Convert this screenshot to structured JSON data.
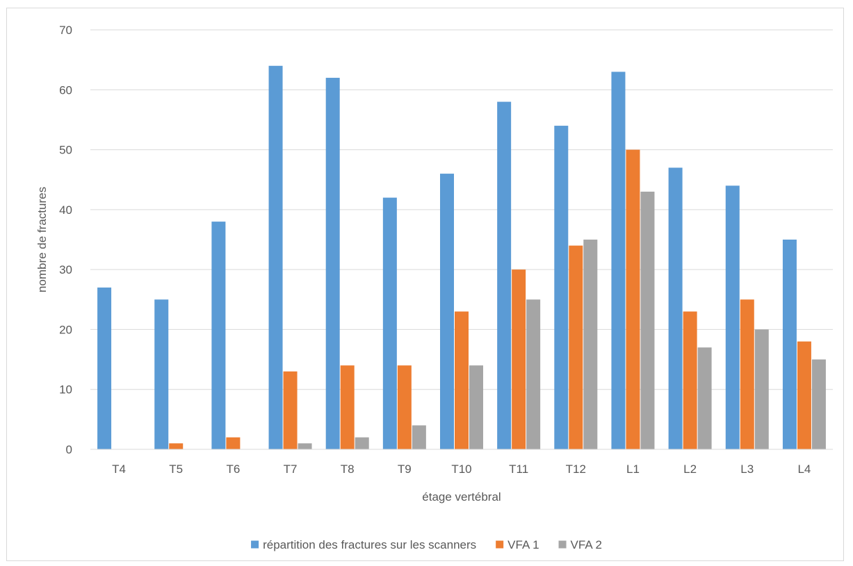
{
  "chart_data": {
    "type": "bar",
    "categories": [
      "T4",
      "T5",
      "T6",
      "T7",
      "T8",
      "T9",
      "T10",
      "T11",
      "T12",
      "L1",
      "L2",
      "L3",
      "L4"
    ],
    "series": [
      {
        "name": "répartition des fractures sur les scanners",
        "color": "#5b9bd5",
        "values": [
          27,
          25,
          38,
          64,
          62,
          42,
          46,
          58,
          54,
          63,
          47,
          44,
          35
        ]
      },
      {
        "name": "VFA 1",
        "color": "#ed7d31",
        "values": [
          0,
          1,
          2,
          13,
          14,
          14,
          23,
          30,
          34,
          50,
          23,
          25,
          18
        ]
      },
      {
        "name": "VFA 2",
        "color": "#a5a5a5",
        "values": [
          0,
          0,
          0,
          1,
          2,
          4,
          14,
          25,
          35,
          43,
          17,
          20,
          15
        ]
      }
    ],
    "title": "",
    "xlabel": "étage vertébral",
    "ylabel": "nombre de fractures",
    "ylim": [
      0,
      70
    ],
    "yticks": [
      0,
      10,
      20,
      30,
      40,
      50,
      60,
      70
    ],
    "grid": true,
    "legend_position": "bottom"
  }
}
